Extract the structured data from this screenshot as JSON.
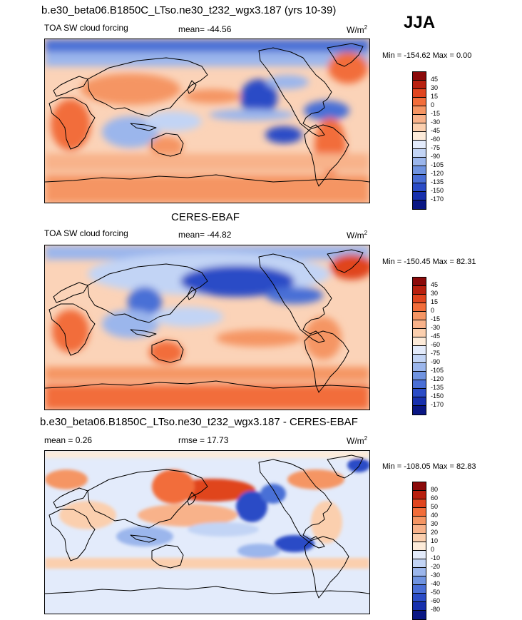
{
  "season": "JJA",
  "panels": [
    {
      "title": "b.e30_beta06.B1850C_LTso.ne30_t232_wgx3.187 (yrs 10-39)",
      "left_label": "TOA SW cloud forcing",
      "center_label": "mean= -44.56",
      "units": "W/m",
      "units_sup": "2",
      "minmax": "Min = -154.62 Max =   0.00",
      "colorbar": {
        "labels": [
          "45",
          "30",
          "15",
          "0",
          "-15",
          "-30",
          "-45",
          "-60",
          "-75",
          "-90",
          "-105",
          "-120",
          "-135",
          "-150",
          "-170"
        ],
        "colors": [
          "#8b0a0a",
          "#b8200f",
          "#e0451f",
          "#f26d3a",
          "#f59563",
          "#f8b28a",
          "#fbcfae",
          "#fdebd9",
          "#e3ebfb",
          "#c2d4f5",
          "#9bb6ec",
          "#6f93e0",
          "#4a6fd6",
          "#2b4cc6",
          "#1730ad",
          "#0a1784"
        ]
      }
    },
    {
      "title": "CERES-EBAF",
      "left_label": "TOA SW cloud forcing",
      "center_label": "mean= -44.82",
      "units": "W/m",
      "units_sup": "2",
      "minmax": "Min = -150.45 Max =  82.31",
      "colorbar": {
        "labels": [
          "45",
          "30",
          "15",
          "0",
          "-15",
          "-30",
          "-45",
          "-60",
          "-75",
          "-90",
          "-105",
          "-120",
          "-135",
          "-150",
          "-170"
        ],
        "colors": [
          "#8b0a0a",
          "#b8200f",
          "#e0451f",
          "#f26d3a",
          "#f59563",
          "#f8b28a",
          "#fbcfae",
          "#fdebd9",
          "#e3ebfb",
          "#c2d4f5",
          "#9bb6ec",
          "#6f93e0",
          "#4a6fd6",
          "#2b4cc6",
          "#1730ad",
          "#0a1784"
        ]
      }
    },
    {
      "title": "b.e30_beta06.B1850C_LTso.ne30_t232_wgx3.187 - CERES-EBAF",
      "left_label": "mean =   0.26",
      "center_label": "rmse =  17.73",
      "units": "W/m",
      "units_sup": "2",
      "minmax": "Min = -108.05 Max =  82.83",
      "colorbar": {
        "labels": [
          "80",
          "60",
          "50",
          "40",
          "30",
          "20",
          "10",
          "0",
          "-10",
          "-20",
          "-30",
          "-40",
          "-50",
          "-60",
          "-80"
        ],
        "colors": [
          "#8b0a0a",
          "#b8200f",
          "#e0451f",
          "#f26d3a",
          "#f59563",
          "#f8b28a",
          "#fbcfae",
          "#fdebd9",
          "#e3ebfb",
          "#c2d4f5",
          "#9bb6ec",
          "#6f93e0",
          "#4a6fd6",
          "#2b4cc6",
          "#1730ad",
          "#0a1784"
        ]
      }
    }
  ],
  "chart_data": {
    "type": "heatmap",
    "title": "JJA",
    "subplots": [
      {
        "title": "b.e30_beta06.B1850C_LTso.ne30_t232_wgx3.187 (yrs 10-39)",
        "variable": "TOA SW cloud forcing",
        "units": "W/m2",
        "mean": -44.56,
        "min": -154.62,
        "max": 0.0,
        "levels": [
          45,
          30,
          15,
          0,
          -15,
          -30,
          -45,
          -60,
          -75,
          -90,
          -105,
          -120,
          -135,
          -150,
          -170
        ]
      },
      {
        "title": "CERES-EBAF",
        "variable": "TOA SW cloud forcing",
        "units": "W/m2",
        "mean": -44.82,
        "min": -150.45,
        "max": 82.31,
        "levels": [
          45,
          30,
          15,
          0,
          -15,
          -30,
          -45,
          -60,
          -75,
          -90,
          -105,
          -120,
          -135,
          -150,
          -170
        ]
      },
      {
        "title": "b.e30_beta06.B1850C_LTso.ne30_t232_wgx3.187 - CERES-EBAF",
        "variable": "difference",
        "units": "W/m2",
        "mean": 0.26,
        "rmse": 17.73,
        "min": -108.05,
        "max": 82.83,
        "levels": [
          80,
          60,
          50,
          40,
          30,
          20,
          10,
          0,
          -10,
          -20,
          -30,
          -40,
          -50,
          -60,
          -80
        ]
      }
    ]
  }
}
